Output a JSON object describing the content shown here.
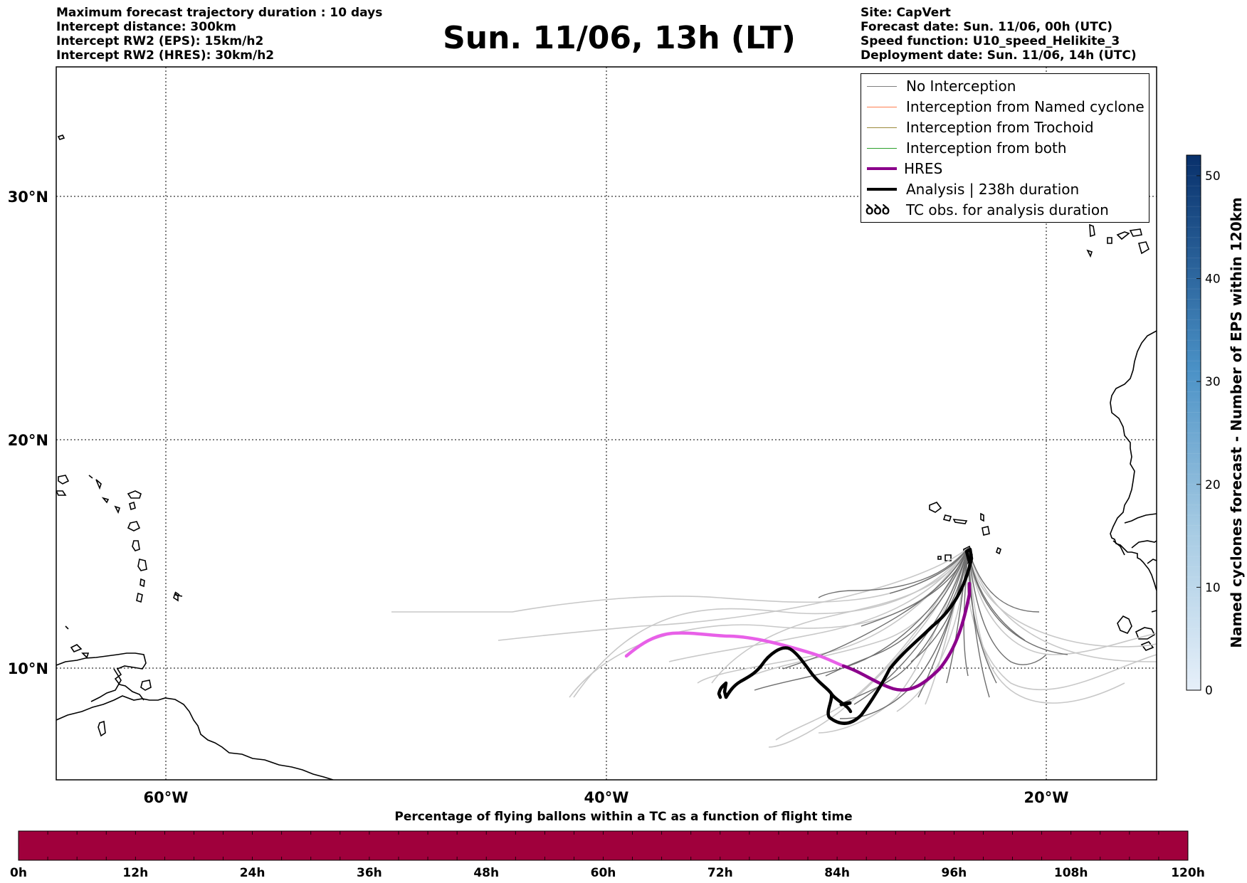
{
  "header_left": [
    "Maximum forecast trajectory duration : 10 days",
    "Intercept distance: 300km",
    "Intercept RW2 (EPS):  15km/h2",
    "Intercept RW2 (HRES): 30km/h2"
  ],
  "title": "Sun. 11/06, 13h (LT)",
  "header_right": [
    "Site: CapVert",
    "Forecast date: Sun. 11/06, 00h (UTC)",
    "Speed function: U10_speed_Helikite_3",
    "Deployment date: Sun. 11/06, 14h (UTC)"
  ],
  "map": {
    "lon_range": [
      -65,
      15
    ],
    "lat_range": [
      5.5,
      35
    ],
    "lat_ticks": [
      "30°N",
      "20°N",
      "10°N"
    ],
    "lon_ticks": [
      "60°W",
      "40°W",
      "20°W"
    ]
  },
  "legend": [
    {
      "label": "No Interception",
      "color": "#7f7f7f"
    },
    {
      "label": "Interception from Named cyclone",
      "color": "#ff7f50"
    },
    {
      "label": "Interception from Trochoid",
      "color": "#9b8a3a"
    },
    {
      "label": "Interception from both",
      "color": "#2ca02c"
    },
    {
      "label": "HRES",
      "color": "#8b008b"
    },
    {
      "label": "Analysis | 238h duration",
      "color": "#000000"
    },
    {
      "label": "TC obs. for analysis duration",
      "symbol": "ꝺꝺꝺ"
    }
  ],
  "colorbar": {
    "label": "Named cyclones forecast - Number of EPS within 120km",
    "ticks": [
      "0",
      "10",
      "20",
      "30",
      "40",
      "50"
    ],
    "range": [
      0,
      52
    ],
    "color_low": "#e6eff9",
    "color_high": "#08306b"
  },
  "timeline": {
    "caption": "Percentage of flying ballons within a TC as a function of flight time",
    "ticks": [
      "0h",
      "12h",
      "24h",
      "36h",
      "48h",
      "60h",
      "72h",
      "84h",
      "96h",
      "108h",
      "120h"
    ],
    "bar_color": "#a0003c"
  }
}
